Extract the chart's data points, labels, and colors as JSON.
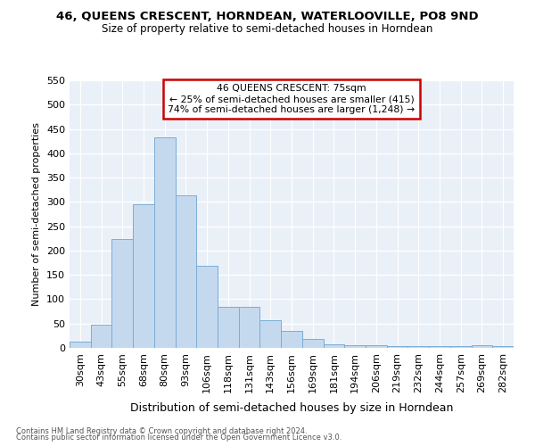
{
  "title1": "46, QUEENS CRESCENT, HORNDEAN, WATERLOOVILLE, PO8 9ND",
  "title2": "Size of property relative to semi-detached houses in Horndean",
  "xlabel": "Distribution of semi-detached houses by size in Horndean",
  "ylabel": "Number of semi-detached properties",
  "categories": [
    "30sqm",
    "43sqm",
    "55sqm",
    "68sqm",
    "80sqm",
    "93sqm",
    "106sqm",
    "118sqm",
    "131sqm",
    "143sqm",
    "156sqm",
    "169sqm",
    "181sqm",
    "194sqm",
    "206sqm",
    "219sqm",
    "232sqm",
    "244sqm",
    "257sqm",
    "269sqm",
    "282sqm"
  ],
  "values": [
    12,
    48,
    223,
    295,
    432,
    313,
    169,
    85,
    85,
    57,
    35,
    18,
    8,
    5,
    5,
    4,
    4,
    3,
    3,
    5,
    3
  ],
  "bar_color": "#c5d9ee",
  "bar_edge_color": "#7badd4",
  "annotation_title": "46 QUEENS CRESCENT: 75sqm",
  "annotation_line1": "← 25% of semi-detached houses are smaller (415)",
  "annotation_line2": "74% of semi-detached houses are larger (1,248) →",
  "annotation_box_facecolor": "#ffffff",
  "annotation_box_edgecolor": "#cc0000",
  "footer1": "Contains HM Land Registry data © Crown copyright and database right 2024.",
  "footer2": "Contains public sector information licensed under the Open Government Licence v3.0.",
  "plot_bg_color": "#eaf0f8",
  "fig_bg_color": "#ffffff",
  "grid_color": "#ffffff",
  "ylim_max": 550,
  "yticks": [
    0,
    50,
    100,
    150,
    200,
    250,
    300,
    350,
    400,
    450,
    500,
    550
  ]
}
